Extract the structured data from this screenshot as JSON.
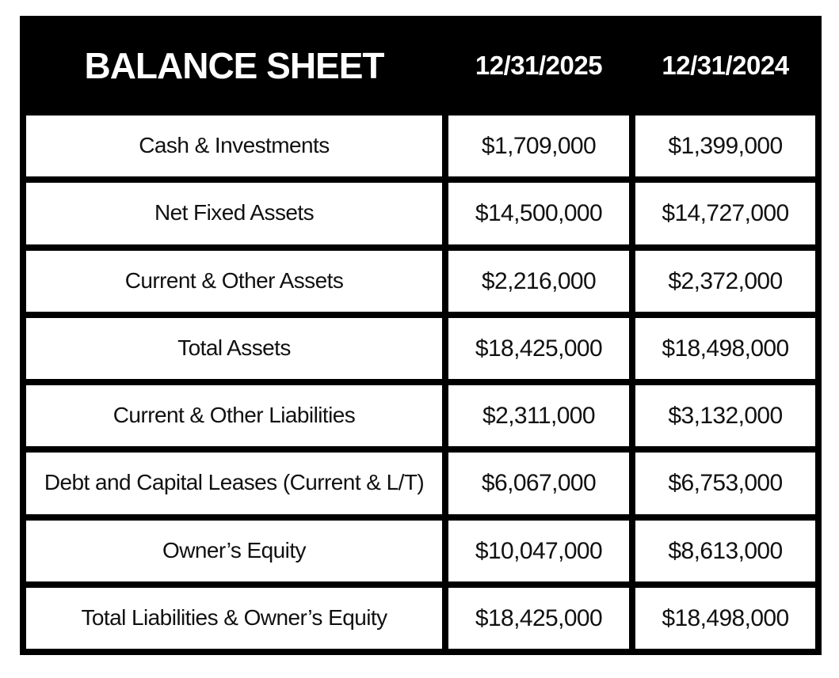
{
  "table": {
    "title": "BALANCE SHEET",
    "columns": [
      "12/31/2025",
      "12/31/2024"
    ],
    "rows": [
      {
        "label": "Cash & Investments",
        "v2025": "$1,709,000",
        "v2024": "$1,399,000"
      },
      {
        "label": "Net Fixed Assets",
        "v2025": "$14,500,000",
        "v2024": "$14,727,000"
      },
      {
        "label": "Current & Other Assets",
        "v2025": "$2,216,000",
        "v2024": "$2,372,000"
      },
      {
        "label": "Total Assets",
        "v2025": "$18,425,000",
        "v2024": "$18,498,000"
      },
      {
        "label": "Current & Other Liabilities",
        "v2025": "$2,311,000",
        "v2024": "$3,132,000"
      },
      {
        "label": "Debt and Capital Leases (Current & L/T)",
        "v2025": "$6,067,000",
        "v2024": "$6,753,000"
      },
      {
        "label": "Owner’s Equity",
        "v2025": "$10,047,000",
        "v2024": "$8,613,000"
      },
      {
        "label": "Total Liabilities & Owner’s Equity",
        "v2025": "$18,425,000",
        "v2024": "$18,498,000"
      }
    ]
  },
  "colors": {
    "header_bg": "#000000",
    "header_text": "#ffffff",
    "border": "#000000",
    "cell_bg": "#ffffff",
    "cell_text": "#111111"
  }
}
